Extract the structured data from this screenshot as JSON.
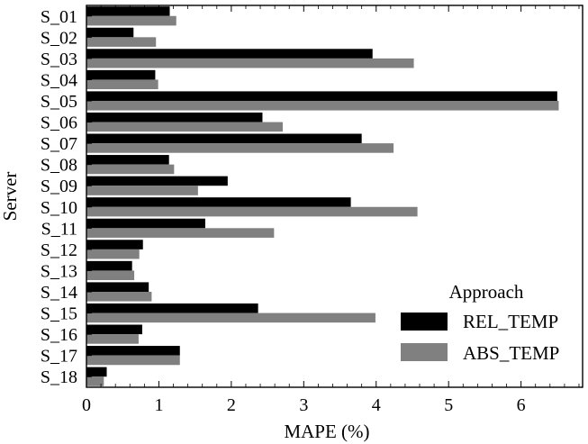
{
  "chart_data": {
    "type": "bar",
    "orientation": "horizontal",
    "categories": [
      "S_01",
      "S_02",
      "S_03",
      "S_04",
      "S_05",
      "S_06",
      "S_07",
      "S_08",
      "S_09",
      "S_10",
      "S_11",
      "S_12",
      "S_13",
      "S_14",
      "S_15",
      "S_16",
      "S_17",
      "S_18"
    ],
    "series": [
      {
        "name": "REL_TEMP",
        "color": "#000000",
        "values": [
          1.15,
          0.65,
          3.95,
          0.95,
          6.5,
          2.43,
          3.8,
          1.14,
          1.95,
          3.65,
          1.64,
          0.78,
          0.63,
          0.86,
          2.37,
          0.77,
          1.29,
          0.28
        ]
      },
      {
        "name": "ABS_TEMP",
        "color": "#808080",
        "values": [
          1.24,
          0.96,
          4.52,
          0.99,
          6.52,
          2.71,
          4.24,
          1.21,
          1.54,
          4.57,
          2.59,
          0.73,
          0.66,
          0.9,
          3.99,
          0.72,
          1.29,
          0.24
        ]
      }
    ],
    "xlabel": "MAPE (%)",
    "ylabel": "Server",
    "xlim": [
      0,
      6.85
    ],
    "xticks": [
      "0",
      "1",
      "2",
      "3",
      "4",
      "5",
      "6"
    ],
    "legend": {
      "title": "Approach",
      "position": "bottom-right"
    },
    "grid": false
  }
}
